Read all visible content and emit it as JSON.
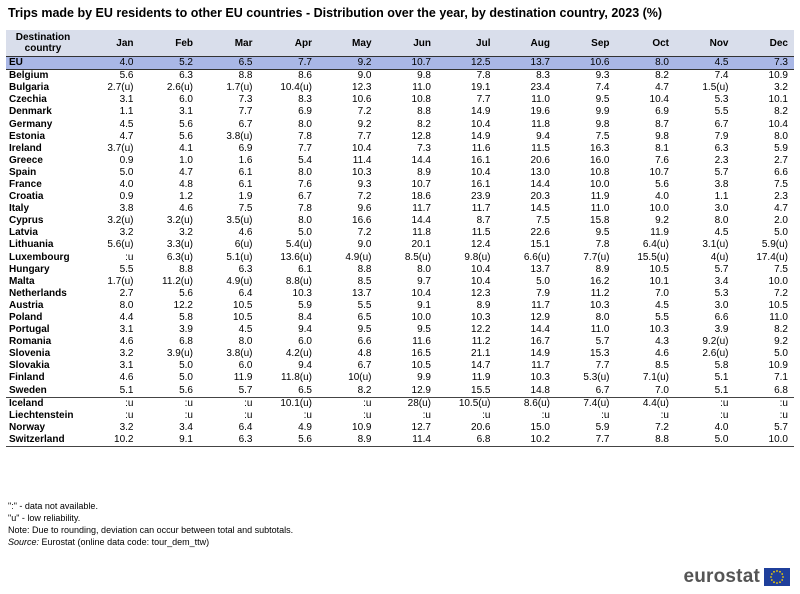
{
  "title": "Trips made by EU residents to other EU countries - Distribution over the year, by destination country, 2023 (%)",
  "chart_data": {
    "type": "table",
    "title": "Trips made by EU residents to other EU countries - Distribution over the year, by destination country, 2023 (%)",
    "header_first": "Destination country",
    "columns": [
      "Jan",
      "Feb",
      "Mar",
      "Apr",
      "May",
      "Jun",
      "Jul",
      "Aug",
      "Sep",
      "Oct",
      "Nov",
      "Dec"
    ],
    "rows": [
      {
        "name": "EU",
        "values": [
          "4.0",
          "5.2",
          "6.5",
          "7.7",
          "9.2",
          "10.7",
          "12.5",
          "13.7",
          "10.6",
          "8.0",
          "4.5",
          "7.3"
        ]
      },
      {
        "name": "Belgium",
        "values": [
          "5.6",
          "6.3",
          "8.8",
          "8.6",
          "9.0",
          "9.8",
          "7.8",
          "8.3",
          "9.3",
          "8.2",
          "7.4",
          "10.9"
        ]
      },
      {
        "name": "Bulgaria",
        "values": [
          "2.7(u)",
          "2.6(u)",
          "1.7(u)",
          "10.4(u)",
          "12.3",
          "11.0",
          "19.1",
          "23.4",
          "7.4",
          "4.7",
          "1.5(u)",
          "3.2"
        ]
      },
      {
        "name": "Czechia",
        "values": [
          "3.1",
          "6.0",
          "7.3",
          "8.3",
          "10.6",
          "10.8",
          "7.7",
          "11.0",
          "9.5",
          "10.4",
          "5.3",
          "10.1"
        ]
      },
      {
        "name": "Denmark",
        "values": [
          "1.1",
          "3.1",
          "7.7",
          "6.9",
          "7.2",
          "8.8",
          "14.9",
          "19.6",
          "9.9",
          "6.9",
          "5.5",
          "8.2"
        ]
      },
      {
        "name": "Germany",
        "values": [
          "4.5",
          "5.6",
          "6.7",
          "8.0",
          "9.2",
          "8.2",
          "10.4",
          "11.8",
          "9.8",
          "8.7",
          "6.7",
          "10.4"
        ]
      },
      {
        "name": "Estonia",
        "values": [
          "4.7",
          "5.6",
          "3.8(u)",
          "7.8",
          "7.7",
          "12.8",
          "14.9",
          "9.4",
          "7.5",
          "9.8",
          "7.9",
          "8.0"
        ]
      },
      {
        "name": "Ireland",
        "values": [
          "3.7(u)",
          "4.1",
          "6.9",
          "7.7",
          "10.4",
          "7.3",
          "11.6",
          "11.5",
          "16.3",
          "8.1",
          "6.3",
          "5.9"
        ]
      },
      {
        "name": "Greece",
        "values": [
          "0.9",
          "1.0",
          "1.6",
          "5.4",
          "11.4",
          "14.4",
          "16.1",
          "20.6",
          "16.0",
          "7.6",
          "2.3",
          "2.7"
        ]
      },
      {
        "name": "Spain",
        "values": [
          "5.0",
          "4.7",
          "6.1",
          "8.0",
          "10.3",
          "8.9",
          "10.4",
          "13.0",
          "10.8",
          "10.7",
          "5.7",
          "6.6"
        ]
      },
      {
        "name": "France",
        "values": [
          "4.0",
          "4.8",
          "6.1",
          "7.6",
          "9.3",
          "10.7",
          "16.1",
          "14.4",
          "10.0",
          "5.6",
          "3.8",
          "7.5"
        ]
      },
      {
        "name": "Croatia",
        "values": [
          "0.9",
          "1.2",
          "1.9",
          "6.7",
          "7.2",
          "18.6",
          "23.9",
          "20.3",
          "11.9",
          "4.0",
          "1.1",
          "2.3"
        ]
      },
      {
        "name": "Italy",
        "values": [
          "3.8",
          "4.6",
          "7.5",
          "7.8",
          "9.6",
          "11.7",
          "11.7",
          "14.5",
          "11.0",
          "10.0",
          "3.0",
          "4.7"
        ]
      },
      {
        "name": "Cyprus",
        "values": [
          "3.2(u)",
          "3.2(u)",
          "3.5(u)",
          "8.0",
          "16.6",
          "14.4",
          "8.7",
          "7.5",
          "15.8",
          "9.2",
          "8.0",
          "2.0"
        ]
      },
      {
        "name": "Latvia",
        "values": [
          "3.2",
          "3.2",
          "4.6",
          "5.0",
          "7.2",
          "11.8",
          "11.5",
          "22.6",
          "9.5",
          "11.9",
          "4.5",
          "5.0"
        ]
      },
      {
        "name": "Lithuania",
        "values": [
          "5.6(u)",
          "3.3(u)",
          "6(u)",
          "5.4(u)",
          "9.0",
          "20.1",
          "12.4",
          "15.1",
          "7.8",
          "6.4(u)",
          "3.1(u)",
          "5.9(u)"
        ]
      },
      {
        "name": "Luxembourg",
        "values": [
          ":u",
          "6.3(u)",
          "5.1(u)",
          "13.6(u)",
          "4.9(u)",
          "8.5(u)",
          "9.8(u)",
          "6.6(u)",
          "7.7(u)",
          "15.5(u)",
          "4(u)",
          "17.4(u)"
        ]
      },
      {
        "name": "Hungary",
        "values": [
          "5.5",
          "8.8",
          "6.3",
          "6.1",
          "8.8",
          "8.0",
          "10.4",
          "13.7",
          "8.9",
          "10.5",
          "5.7",
          "7.5"
        ]
      },
      {
        "name": "Malta",
        "values": [
          "1.7(u)",
          "11.2(u)",
          "4.9(u)",
          "8.8(u)",
          "8.5",
          "9.7",
          "10.4",
          "5.0",
          "16.2",
          "10.1",
          "3.4",
          "10.0"
        ]
      },
      {
        "name": "Netherlands",
        "values": [
          "2.7",
          "5.6",
          "6.4",
          "10.3",
          "13.7",
          "10.4",
          "12.3",
          "7.9",
          "11.2",
          "7.0",
          "5.3",
          "7.2"
        ]
      },
      {
        "name": "Austria",
        "values": [
          "8.0",
          "12.2",
          "10.5",
          "5.9",
          "5.5",
          "9.1",
          "8.9",
          "11.7",
          "10.3",
          "4.5",
          "3.0",
          "10.5"
        ]
      },
      {
        "name": "Poland",
        "values": [
          "4.4",
          "5.8",
          "10.5",
          "8.4",
          "6.5",
          "10.0",
          "10.3",
          "12.9",
          "8.0",
          "5.5",
          "6.6",
          "11.0"
        ]
      },
      {
        "name": "Portugal",
        "values": [
          "3.1",
          "3.9",
          "4.5",
          "9.4",
          "9.5",
          "9.5",
          "12.2",
          "14.4",
          "11.0",
          "10.3",
          "3.9",
          "8.2"
        ]
      },
      {
        "name": "Romania",
        "values": [
          "4.6",
          "6.8",
          "8.0",
          "6.0",
          "6.6",
          "11.6",
          "11.2",
          "16.7",
          "5.7",
          "4.3",
          "9.2(u)",
          "9.2"
        ]
      },
      {
        "name": "Slovenia",
        "values": [
          "3.2",
          "3.9(u)",
          "3.8(u)",
          "4.2(u)",
          "4.8",
          "16.5",
          "21.1",
          "14.9",
          "15.3",
          "4.6",
          "2.6(u)",
          "5.0"
        ]
      },
      {
        "name": "Slovakia",
        "values": [
          "3.1",
          "5.0",
          "6.0",
          "9.4",
          "6.7",
          "10.5",
          "14.7",
          "11.7",
          "7.7",
          "8.5",
          "5.8",
          "10.9"
        ]
      },
      {
        "name": "Finland",
        "values": [
          "4.6",
          "5.0",
          "11.9",
          "11.8(u)",
          "10(u)",
          "9.9",
          "11.9",
          "10.3",
          "5.3(u)",
          "7.1(u)",
          "5.1",
          "7.1"
        ]
      },
      {
        "name": "Sweden",
        "values": [
          "5.1",
          "5.6",
          "5.7",
          "6.5",
          "8.2",
          "12.9",
          "15.5",
          "14.8",
          "6.7",
          "7.0",
          "5.1",
          "6.8"
        ]
      },
      {
        "name": "Iceland",
        "values": [
          ":u",
          ":u",
          ":u",
          "10.1(u)",
          ":u",
          "28(u)",
          "10.5(u)",
          "8.6(u)",
          "7.4(u)",
          "4.4(u)",
          ":u",
          ":u"
        ]
      },
      {
        "name": "Liechtenstein",
        "values": [
          ":u",
          ":u",
          ":u",
          ":u",
          ":u",
          ":u",
          ":u",
          ":u",
          ":u",
          ":u",
          ":u",
          ":u"
        ]
      },
      {
        "name": "Norway",
        "values": [
          "3.2",
          "3.4",
          "6.4",
          "4.9",
          "10.9",
          "12.7",
          "20.6",
          "15.0",
          "5.9",
          "7.2",
          "4.0",
          "5.7"
        ]
      },
      {
        "name": "Switzerland",
        "values": [
          "10.2",
          "9.1",
          "6.3",
          "5.6",
          "8.9",
          "11.4",
          "6.8",
          "10.2",
          "7.7",
          "8.8",
          "5.0",
          "10.0"
        ]
      }
    ]
  },
  "notes": {
    "line1": "\":\" - data not available.",
    "line2": "\"u\" - low reliability.",
    "line3": "Note: Due to rounding, deviation can occur between total and subtotals.",
    "source_label": "Source:",
    "source_text": " Eurostat (online data code: tour_dem_ttw)"
  },
  "logo": {
    "word": "eurostat",
    "flag_color": "#1f3f9b",
    "star_color": "#f5d000"
  }
}
